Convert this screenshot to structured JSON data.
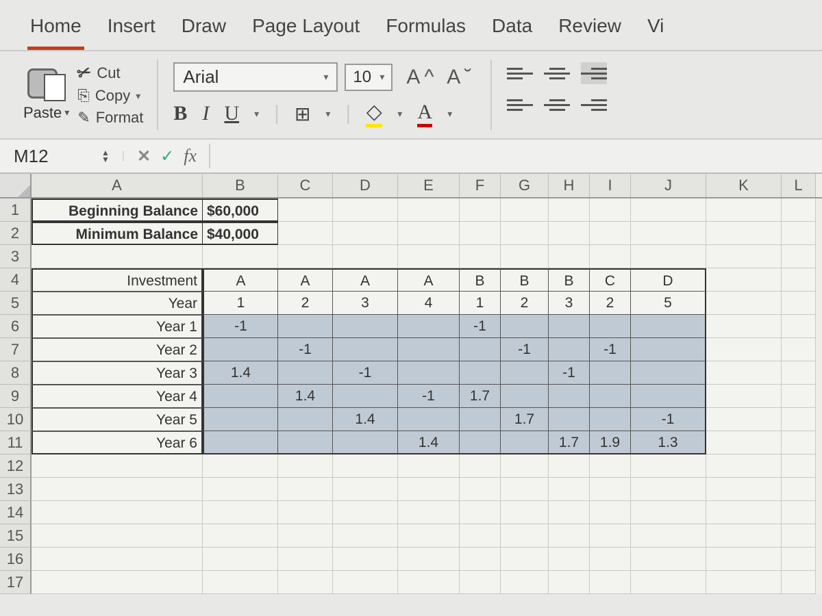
{
  "ribbon": {
    "tabs": [
      "Home",
      "Insert",
      "Draw",
      "Page Layout",
      "Formulas",
      "Data",
      "Review",
      "Vi"
    ],
    "active_tab": "Home"
  },
  "clipboard": {
    "paste": "Paste",
    "cut": "Cut",
    "copy": "Copy",
    "format": "Format"
  },
  "font": {
    "name": "Arial",
    "size": "10",
    "grow_shrink": "A^  A˘",
    "bold": "B",
    "italic": "I",
    "underline": "U",
    "fontcolor_letter": "A"
  },
  "namebox": {
    "cell_ref": "M12",
    "fx": "fx"
  },
  "grid": {
    "col_widths": {
      "A": 250,
      "B": 110,
      "C": 80,
      "D": 95,
      "E": 90,
      "F": 60,
      "G": 70,
      "H": 60,
      "I": 60,
      "J": 110,
      "K": 110,
      "L": 50
    },
    "columns": [
      "A",
      "B",
      "C",
      "D",
      "E",
      "F",
      "G",
      "H",
      "I",
      "J",
      "K",
      "L"
    ],
    "row_count": 17,
    "cells": {
      "A1": "Beginning Balance",
      "B1": "$60,000",
      "A2": "Minimum Balance",
      "B2": "$40,000",
      "A4": "Investment",
      "B4": "A",
      "C4": "A",
      "D4": "A",
      "E4": "A",
      "F4": "B",
      "G4": "B",
      "H4": "B",
      "I4": "C",
      "J4": "D",
      "A5": "Year",
      "B5": "1",
      "C5": "2",
      "D5": "3",
      "E5": "4",
      "F5": "1",
      "G5": "2",
      "H5": "3",
      "I5": "2",
      "J5": "5",
      "A6": "Year 1",
      "B6": "-1",
      "F6": "-1",
      "A7": "Year 2",
      "C7": "-1",
      "G7": "-1",
      "I7": "-1",
      "A8": "Year 3",
      "B8": "1.4",
      "D8": "-1",
      "H8": "-1",
      "A9": "Year 4",
      "C9": "1.4",
      "E9": "-1",
      "F9": "1.7",
      "A10": "Year 5",
      "D10": "1.4",
      "G10": "1.7",
      "J10": "-1",
      "A11": "Year 6",
      "E11": "1.4",
      "H11": "1.7",
      "I11": "1.9",
      "J11": "1.3"
    },
    "bold_cells": [
      "A1",
      "B1",
      "A2",
      "B2"
    ],
    "shaded_range": {
      "r1": 6,
      "r2": 11,
      "c1": "B",
      "c2": "J"
    },
    "colors": {
      "shade": "#c0cad4",
      "grid_bg": "#f3f3ef",
      "header_bg": "#e2e2de",
      "ribbon_underline": "#c43e1c"
    }
  }
}
